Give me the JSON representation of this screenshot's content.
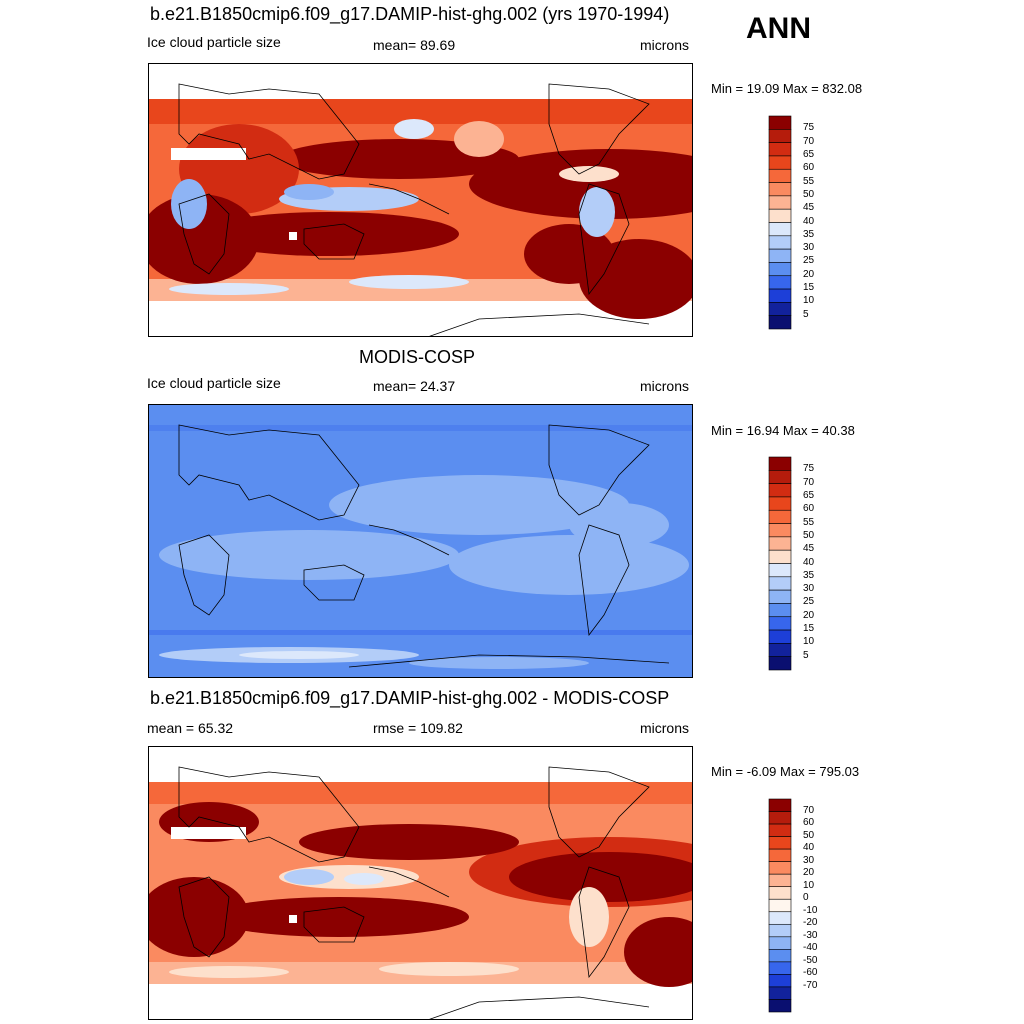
{
  "season": "ANN",
  "colorbar_levels": {
    "abs": [
      "75",
      "70",
      "65",
      "60",
      "55",
      "50",
      "45",
      "40",
      "35",
      "30",
      "25",
      "20",
      "15",
      "10",
      "5"
    ],
    "diff": [
      "70",
      "60",
      "50",
      "40",
      "30",
      "20",
      "10",
      "0",
      "-10",
      "-20",
      "-30",
      "-40",
      "-50",
      "-60",
      "-70"
    ]
  },
  "colors": {
    "abs_scale": [
      "#8b0000",
      "#b51c0c",
      "#d22c12",
      "#e8461c",
      "#f5683a",
      "#fa8a60",
      "#fcb393",
      "#fde0cc",
      "#dce8fb",
      "#b3cdf8",
      "#8eb4f5",
      "#5b8ef0",
      "#3766ec",
      "#1d3fd8",
      "#12229c",
      "#0a0f70"
    ],
    "diff_scale": [
      "#8b0000",
      "#b51c0c",
      "#d22c12",
      "#e8461c",
      "#f5683a",
      "#fa8a60",
      "#fcb393",
      "#fde0cc",
      "#fff6ee",
      "#dce8fb",
      "#b3cdf8",
      "#8eb4f5",
      "#5b8ef0",
      "#3766ec",
      "#1d3fd8",
      "#12229c",
      "#0a0f70"
    ]
  },
  "panels": [
    {
      "title": "b.e21.B1850cmip6.f09_g17.DAMIP-hist-ghg.002 (yrs 1970-1994)",
      "left_label": "Ice cloud particle size",
      "center_label": "mean=  89.69",
      "right_label": "microns",
      "minmax": "Min =  19.09 Max = 832.08"
    },
    {
      "title": "MODIS-COSP",
      "left_label": "Ice cloud particle size",
      "center_label": "mean=  24.37",
      "right_label": "microns",
      "minmax": "Min =  16.94 Max =  40.38"
    },
    {
      "title": "b.e21.B1850cmip6.f09_g17.DAMIP-hist-ghg.002 - MODIS-COSP",
      "left_label": "mean =  65.32",
      "center_label": "rmse = 109.82",
      "right_label": "microns",
      "minmax": "Min =  -6.09 Max = 795.03"
    }
  ],
  "chart_data": [
    {
      "type": "heatmap",
      "title": "b.e21.B1850cmip6.f09_g17.DAMIP-hist-ghg.002 (yrs 1970-1994)",
      "variable": "Ice cloud particle size",
      "units": "microns",
      "mean": 89.69,
      "min": 19.09,
      "max": 832.08,
      "contour_levels": [
        5,
        10,
        15,
        20,
        25,
        30,
        35,
        40,
        45,
        50,
        55,
        60,
        65,
        70,
        75
      ]
    },
    {
      "type": "heatmap",
      "title": "MODIS-COSP",
      "variable": "Ice cloud particle size",
      "units": "microns",
      "mean": 24.37,
      "min": 16.94,
      "max": 40.38,
      "contour_levels": [
        5,
        10,
        15,
        20,
        25,
        30,
        35,
        40,
        45,
        50,
        55,
        60,
        65,
        70,
        75
      ]
    },
    {
      "type": "heatmap",
      "title": "b.e21.B1850cmip6.f09_g17.DAMIP-hist-ghg.002 - MODIS-COSP",
      "units": "microns",
      "mean": 65.32,
      "rmse": 109.82,
      "min": -6.09,
      "max": 795.03,
      "contour_levels": [
        -70,
        -60,
        -50,
        -40,
        -30,
        -20,
        -10,
        0,
        10,
        20,
        30,
        40,
        50,
        60,
        70
      ]
    }
  ]
}
